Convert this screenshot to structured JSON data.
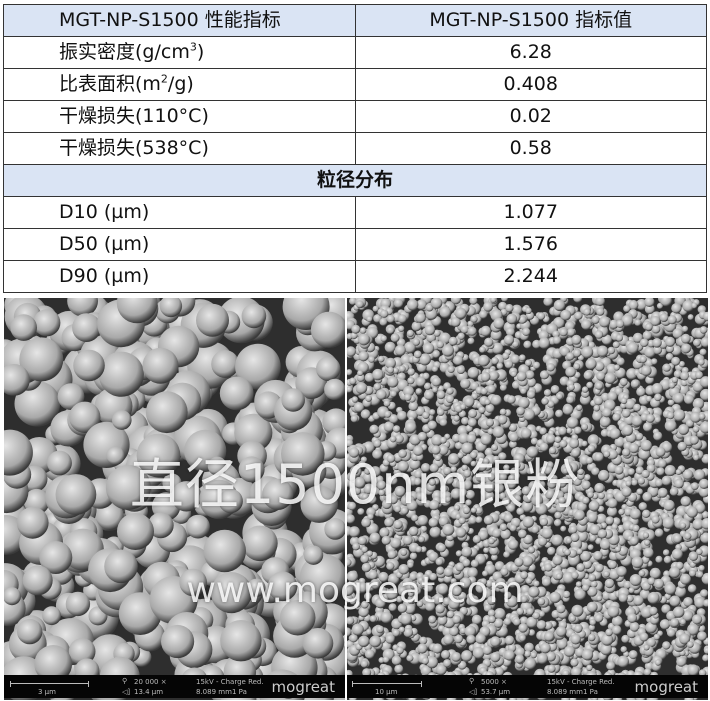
{
  "table": {
    "header": [
      "MGT-NP-S1500 性能指标",
      "MGT-NP-S1500 指标值"
    ],
    "rows": [
      {
        "label": "振实密度(g/cm",
        "sup": "3",
        "tail": ")",
        "value": "6.28"
      },
      {
        "label": "比表面积(m",
        "sup": "2",
        "tail": "/g)",
        "value": "0.408"
      },
      {
        "label": "干燥损失(110°C)",
        "sup": "",
        "tail": "",
        "value": "0.02"
      },
      {
        "label": "干燥损失(538°C)",
        "sup": "",
        "tail": "",
        "value": "0.58"
      }
    ],
    "section": "粒径分布",
    "psd": [
      {
        "label": "D10 (µm)",
        "value": "1.077"
      },
      {
        "label": "D50 (µm)",
        "value": "1.576"
      },
      {
        "label": "D90 (µm)",
        "value": "2.244"
      }
    ]
  },
  "images": {
    "left": {
      "scale": "3 µm",
      "mag": "20 000 ×",
      "hfw": "13.4 µm",
      "kv": "15kV - Charge Red.",
      "wd": "8.089 mm",
      "pa": "1 Pa",
      "logo": "mogreat"
    },
    "right": {
      "scale": "10 µm",
      "mag": "5000 ×",
      "hfw": "53.7 µm",
      "kv": "15kV - Charge Red.",
      "wd": "8.089 mm",
      "pa": "1 Pa",
      "logo": "mogreat"
    }
  },
  "overlay": {
    "title": "直径1500nm银粉",
    "url": "www.mogreat.com"
  }
}
